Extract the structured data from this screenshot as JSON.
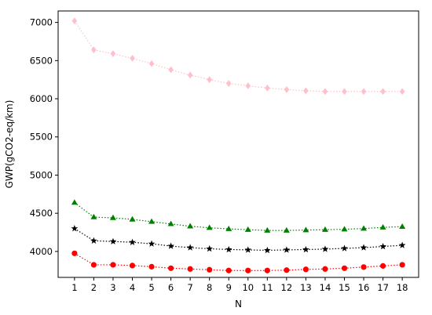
{
  "chart_data": {
    "type": "line",
    "title": "",
    "xlabel": "N",
    "ylabel": "GWP(gCO2-eq/km)",
    "x": [
      1,
      2,
      3,
      4,
      5,
      6,
      7,
      8,
      9,
      10,
      11,
      12,
      13,
      14,
      15,
      16,
      17,
      18
    ],
    "x_ticks": [
      "1",
      "2",
      "3",
      "4",
      "5",
      "6",
      "7",
      "8",
      "9",
      "10",
      "11",
      "12",
      "13",
      "14",
      "15",
      "16",
      "17",
      "18"
    ],
    "y_ticks": [
      "4000",
      "4500",
      "5000",
      "5500",
      "6000",
      "6500",
      "7000"
    ],
    "xlim": [
      0.15,
      18.85
    ],
    "ylim": [
      3660,
      7150
    ],
    "grid": false,
    "legend": "none",
    "series": [
      {
        "color": "#ffc0cb",
        "marker": "diamond",
        "linestyle": "dotted",
        "values": [
          7020,
          6640,
          6590,
          6530,
          6460,
          6380,
          6310,
          6250,
          6200,
          6170,
          6140,
          6120,
          6105,
          6095,
          6095,
          6095,
          6095,
          6095
        ]
      },
      {
        "color": "#008000",
        "marker": "triangle",
        "linestyle": "dotted",
        "values": [
          4640,
          4450,
          4440,
          4420,
          4390,
          4360,
          4330,
          4310,
          4295,
          4285,
          4275,
          4275,
          4280,
          4285,
          4290,
          4300,
          4315,
          4325
        ]
      },
      {
        "color": "#000000",
        "marker": "star",
        "linestyle": "dotted",
        "values": [
          4300,
          4140,
          4130,
          4120,
          4100,
          4070,
          4050,
          4035,
          4025,
          4020,
          4015,
          4020,
          4025,
          4030,
          4040,
          4050,
          4065,
          4080
        ]
      },
      {
        "color": "#ff0000",
        "marker": "circle",
        "linestyle": "dotted",
        "values": [
          3975,
          3825,
          3825,
          3815,
          3800,
          3780,
          3770,
          3760,
          3750,
          3750,
          3750,
          3755,
          3765,
          3770,
          3780,
          3795,
          3810,
          3825
        ]
      }
    ]
  }
}
